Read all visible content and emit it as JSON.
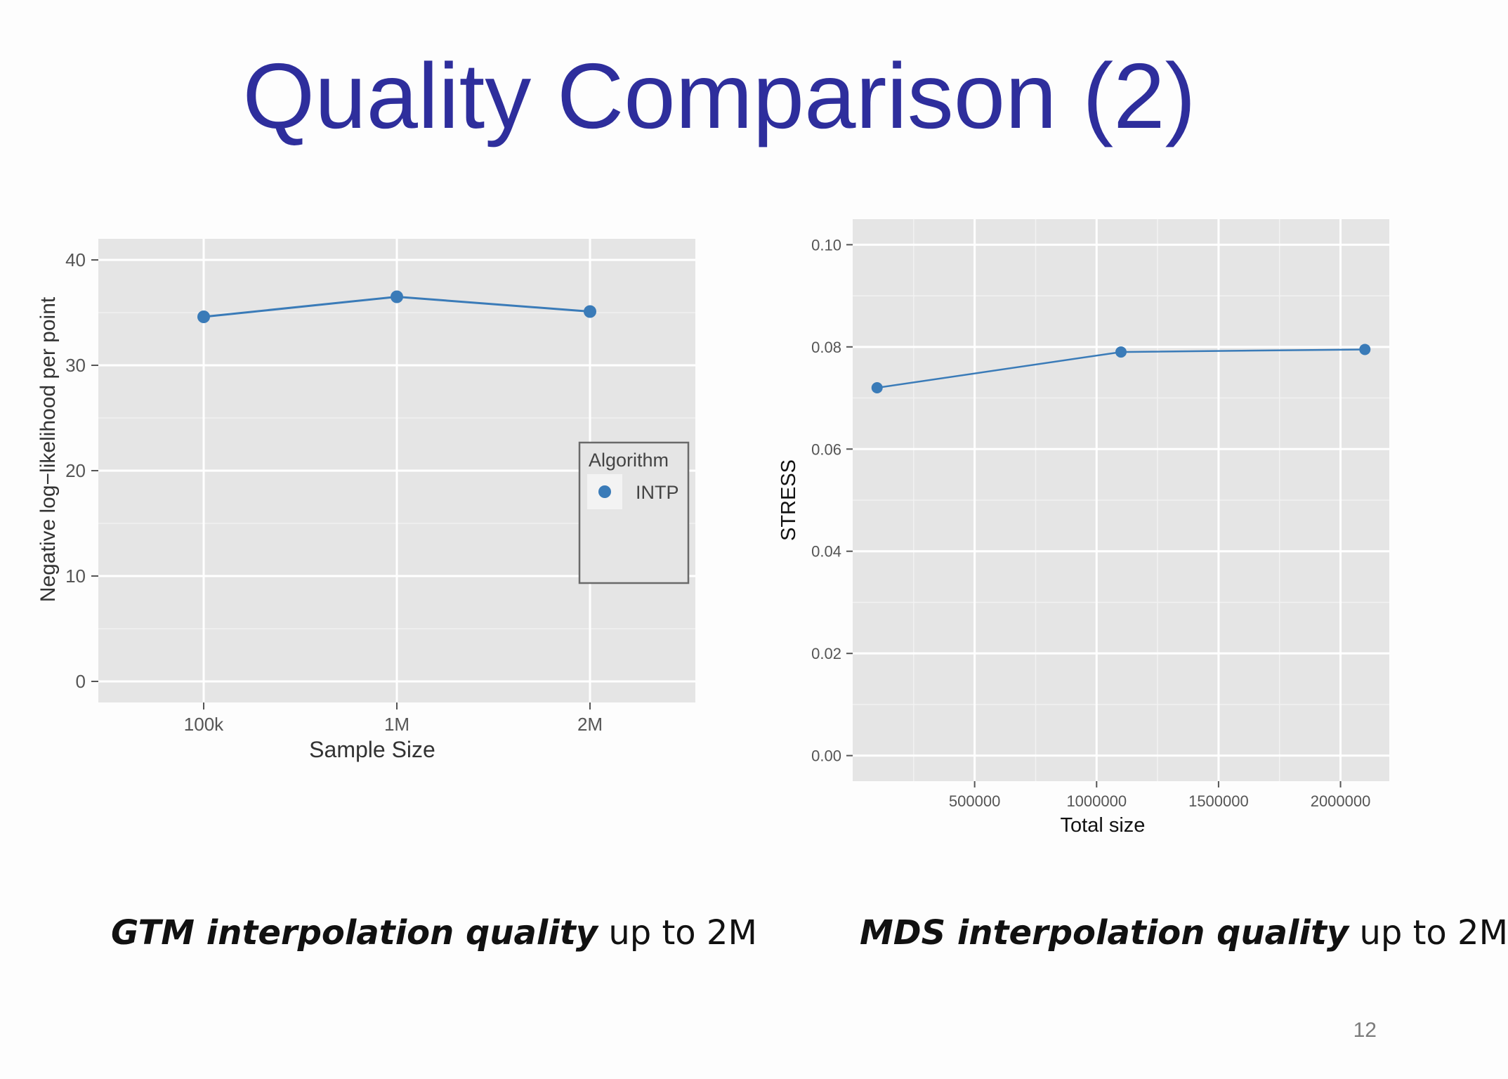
{
  "slide": {
    "title": "Quality Comparison (2)",
    "page_number": "12",
    "colors": {
      "title": "#2e2e9c",
      "series": "#3a7bb8",
      "panel": "#e5e5e5"
    }
  },
  "captions": [
    {
      "emphasis": "GTM interpolation quality",
      "rest": " up to 2M"
    },
    {
      "emphasis": "MDS interpolation quality",
      "rest": " up to 2M"
    }
  ],
  "chart_data": [
    {
      "type": "line",
      "title": "",
      "xlabel": "Sample Size",
      "ylabel": "Negative log−likelihood per point",
      "categories": [
        "100k",
        "1M",
        "2M"
      ],
      "series": [
        {
          "name": "INTP",
          "values": [
            34.6,
            36.5,
            35.1
          ]
        }
      ],
      "ylim": [
        -2,
        42
      ],
      "yticks": [
        0,
        10,
        20,
        30,
        40
      ],
      "legend": {
        "title": "Algorithm",
        "entries": [
          "INTP"
        ],
        "placement": "right"
      },
      "grid": true
    },
    {
      "type": "line",
      "title": "",
      "xlabel": "Total size",
      "ylabel": "STRESS",
      "x": [
        100000,
        1100000,
        2100000
      ],
      "series": [
        {
          "name": "",
          "values": [
            0.072,
            0.079,
            0.0795
          ]
        }
      ],
      "xlim": [
        0,
        2200000
      ],
      "ylim": [
        -0.005,
        0.105
      ],
      "xticks": [
        500000,
        1000000,
        1500000,
        2000000
      ],
      "xtick_labels": [
        "500000",
        "1000000",
        "1500000",
        "2000000"
      ],
      "yticks": [
        0.0,
        0.02,
        0.04,
        0.06,
        0.08,
        0.1
      ],
      "ytick_labels": [
        "0.00",
        "0.02",
        "0.04",
        "0.06",
        "0.08",
        "0.10"
      ],
      "legend": null,
      "grid": true
    }
  ]
}
